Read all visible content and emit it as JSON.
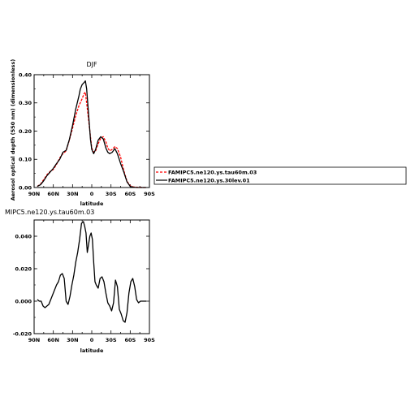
{
  "chart_data": [
    {
      "type": "line",
      "title": "DJF",
      "xlabel": "latitude",
      "ylabel": "Aerosol optical depth (550 nm) (dimensionless)",
      "xlim": [
        90,
        -90
      ],
      "ylim": [
        0,
        0.4
      ],
      "xticks": [
        90,
        60,
        30,
        0,
        -30,
        -60,
        -90
      ],
      "xtick_labels": [
        "90N",
        "60N",
        "30N",
        "0",
        "30S",
        "60S",
        "90S"
      ],
      "yticks": [
        0,
        0.1,
        0.2,
        0.3,
        0.4
      ],
      "ytick_labels": [
        "0.00",
        "0.10",
        "0.20",
        "0.30",
        "0.40"
      ],
      "series": [
        {
          "name": "FAMIPC5.ne120.ys.tau60m.03",
          "color": "#ff0000",
          "dash": "dashed",
          "x": [
            85,
            80,
            75,
            70,
            65,
            60,
            55,
            50,
            45,
            40,
            35,
            30,
            25,
            20,
            18,
            15,
            12,
            10,
            8,
            5,
            2,
            0,
            -3,
            -6,
            -10,
            -14,
            -18,
            -22,
            -25,
            -28,
            -32,
            -36,
            -40,
            -45,
            -50,
            -55,
            -60,
            -65,
            -70,
            -75,
            -80,
            -85
          ],
          "y": [
            0.004,
            0.012,
            0.028,
            0.045,
            0.057,
            0.064,
            0.082,
            0.105,
            0.12,
            0.13,
            0.168,
            0.21,
            0.255,
            0.29,
            0.3,
            0.315,
            0.333,
            0.338,
            0.3,
            0.24,
            0.18,
            0.14,
            0.125,
            0.13,
            0.155,
            0.175,
            0.18,
            0.162,
            0.14,
            0.13,
            0.135,
            0.145,
            0.138,
            0.108,
            0.06,
            0.022,
            0.006,
            0.002,
            0.001,
            0.0005,
            0.0,
            0.0
          ]
        },
        {
          "name": "FAMIPC5.ne120.ys.30lev.01",
          "color": "#000000",
          "dash": "solid",
          "x": [
            85,
            80,
            75,
            70,
            65,
            60,
            55,
            50,
            45,
            40,
            35,
            30,
            25,
            20,
            18,
            15,
            12,
            10,
            8,
            5,
            2,
            0,
            -3,
            -6,
            -10,
            -14,
            -18,
            -22,
            -25,
            -28,
            -32,
            -36,
            -40,
            -45,
            -50,
            -55,
            -60,
            -65,
            -70,
            -75,
            -80,
            -85
          ],
          "y": [
            0.004,
            0.01,
            0.024,
            0.042,
            0.055,
            0.068,
            0.085,
            0.1,
            0.125,
            0.132,
            0.17,
            0.22,
            0.278,
            0.325,
            0.348,
            0.365,
            0.372,
            0.378,
            0.35,
            0.26,
            0.17,
            0.135,
            0.12,
            0.135,
            0.168,
            0.18,
            0.172,
            0.14,
            0.125,
            0.12,
            0.125,
            0.138,
            0.12,
            0.085,
            0.055,
            0.02,
            0.004,
            0.001,
            0.0,
            0.0,
            0.0,
            0.0
          ]
        }
      ],
      "legend": "right"
    },
    {
      "type": "line",
      "title": "MIPC5.ne120.ys.tau60m.03",
      "xlabel": "latitude",
      "ylabel": "",
      "xlim": [
        90,
        -90
      ],
      "ylim": [
        -0.02,
        0.05
      ],
      "xticks": [
        90,
        60,
        30,
        0,
        -30,
        -60,
        -90
      ],
      "xtick_labels": [
        "90N",
        "60N",
        "30N",
        "0",
        "30S",
        "60S",
        "90S"
      ],
      "yticks": [
        -0.02,
        0,
        0.02,
        0.04
      ],
      "ytick_labels": [
        "-0.020",
        "0.000",
        "0.020",
        "0.040"
      ],
      "series": [
        {
          "color": "#000000",
          "dash": "solid",
          "x": [
            85,
            82,
            79,
            76,
            73,
            70,
            67,
            64,
            61,
            58,
            55,
            52,
            49,
            46,
            43,
            40,
            37,
            34,
            31,
            28,
            25,
            22,
            19,
            16,
            13,
            11,
            9,
            7,
            5,
            3,
            1,
            -1,
            -3,
            -5,
            -7,
            -10,
            -13,
            -16,
            -19,
            -22,
            -25,
            -28,
            -31,
            -34,
            -37,
            -40,
            -43,
            -46,
            -49,
            -52,
            -55,
            -58,
            -61,
            -64,
            -67,
            -70,
            -73,
            -76,
            -79,
            -82,
            -85
          ],
          "y": [
            0.001,
            0.0,
            0.0,
            -0.003,
            -0.004,
            -0.003,
            -0.002,
            0.001,
            0.004,
            0.007,
            0.01,
            0.012,
            0.016,
            0.017,
            0.014,
            0.0,
            -0.002,
            0.003,
            0.01,
            0.016,
            0.024,
            0.03,
            0.038,
            0.048,
            0.049,
            0.046,
            0.042,
            0.03,
            0.035,
            0.04,
            0.042,
            0.038,
            0.024,
            0.012,
            0.01,
            0.008,
            0.014,
            0.015,
            0.012,
            0.005,
            -0.001,
            -0.003,
            -0.006,
            -0.001,
            0.013,
            0.009,
            -0.005,
            -0.008,
            -0.012,
            -0.013,
            -0.007,
            0.005,
            0.012,
            0.014,
            0.009,
            0.001,
            -0.001,
            0.0,
            0.0,
            0.0,
            0.0
          ]
        }
      ]
    }
  ]
}
